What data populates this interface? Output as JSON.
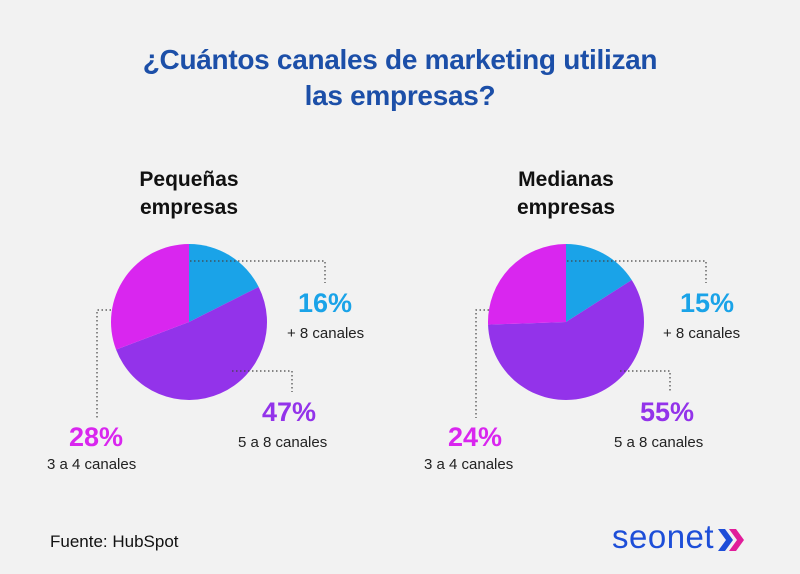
{
  "title": {
    "line1": "¿Cuántos canales de marketing utilizan",
    "line2": "las empresas?"
  },
  "colors": {
    "title": "#1c4fa8",
    "blue": "#1aa3e8",
    "purple": "#9333ea",
    "magenta": "#d926ef"
  },
  "chart_data": [
    {
      "type": "pie",
      "title_line1": "Pequeñas",
      "title_line2": "empresas",
      "slices": [
        {
          "label": "+ 8 canales",
          "value": 16,
          "display": "16%",
          "color": "#1aa3e8"
        },
        {
          "label": "5 a 8 canales",
          "value": 47,
          "display": "47%",
          "color": "#9333ea"
        },
        {
          "label": "3 a 4 canales",
          "value": 28,
          "display": "28%",
          "color": "#d926ef"
        }
      ]
    },
    {
      "type": "pie",
      "title_line1": "Medianas",
      "title_line2": "empresas",
      "slices": [
        {
          "label": "+ 8 canales",
          "value": 15,
          "display": "15%",
          "color": "#1aa3e8"
        },
        {
          "label": "5 a 8 canales",
          "value": 55,
          "display": "55%",
          "color": "#9333ea"
        },
        {
          "label": "3 a 4 canales",
          "value": 24,
          "display": "24%",
          "color": "#d926ef"
        }
      ]
    }
  ],
  "footer": {
    "source": "Fuente: HubSpot"
  },
  "logo": {
    "text": "seonet"
  }
}
